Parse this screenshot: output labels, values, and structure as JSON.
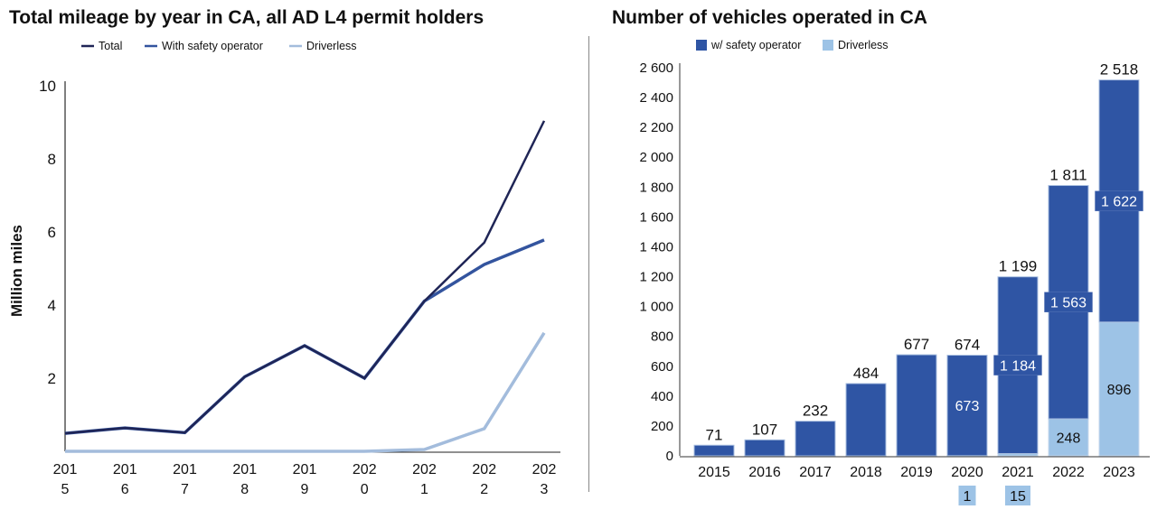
{
  "chart_data": [
    {
      "type": "line",
      "title": "Total mileage by year in CA, all AD L4 permit holders",
      "xlabel": "",
      "ylabel": "Million miles",
      "x": [
        "2015",
        "2016",
        "2017",
        "2018",
        "2019",
        "2020",
        "2021",
        "2022",
        "2023"
      ],
      "x_tick_labels": [
        [
          "201",
          "5"
        ],
        [
          "201",
          "6"
        ],
        [
          "201",
          "7"
        ],
        [
          "201",
          "8"
        ],
        [
          "201",
          "9"
        ],
        [
          "202",
          "0"
        ],
        [
          "202",
          "1"
        ],
        [
          "202",
          "2"
        ],
        [
          "202",
          "3"
        ]
      ],
      "y_ticks": [
        2,
        4,
        6,
        8,
        10
      ],
      "y_tick_labels": [
        [
          "2"
        ],
        [
          "4"
        ],
        [
          "6"
        ],
        [
          "8"
        ],
        [
          "1",
          "0"
        ]
      ],
      "ylim": [
        0,
        10
      ],
      "grid": false,
      "legend_position": "top-left",
      "series": [
        {
          "name": "Total",
          "color": "#1f2556",
          "values": [
            0.49,
            0.64,
            0.51,
            2.04,
            2.89,
            2.0,
            4.11,
            5.71,
            9.04
          ]
        },
        {
          "name": "With safety operator",
          "legend_lines": [
            "With safety",
            "operator"
          ],
          "color": "#33549e",
          "values": [
            0.49,
            0.64,
            0.51,
            2.04,
            2.89,
            2.0,
            4.11,
            5.11,
            5.78
          ]
        },
        {
          "name": "Driverless",
          "color": "#a3bcdc",
          "values": [
            0.0,
            0.0,
            0.0,
            0.0,
            0.0,
            0.0,
            0.05,
            0.62,
            3.24
          ]
        }
      ]
    },
    {
      "type": "bar",
      "stacked": true,
      "title": "Number of vehicles operated in CA",
      "xlabel": "",
      "ylabel": "",
      "categories": [
        "2015",
        "2016",
        "2017",
        "2018",
        "2019",
        "2020",
        "2021",
        "2022",
        "2023"
      ],
      "ylim": [
        0,
        2600
      ],
      "y_ticks": [
        0,
        200,
        400,
        600,
        800,
        1000,
        1200,
        1400,
        1600,
        1800,
        2000,
        2200,
        2400,
        2600
      ],
      "y_tick_labels": [
        [
          "0"
        ],
        [
          "20",
          "0"
        ],
        [
          "40",
          "0"
        ],
        [
          "60",
          "0"
        ],
        [
          "80",
          "0"
        ],
        [
          "1 00",
          "0"
        ],
        [
          "1 20",
          "0"
        ],
        [
          "1 40",
          "0"
        ],
        [
          "1 60",
          "0"
        ],
        [
          "1 80",
          "0"
        ],
        [
          "2 00",
          "0"
        ],
        [
          "2 20",
          "0"
        ],
        [
          "2 40",
          "0"
        ],
        [
          "2 60",
          "0"
        ]
      ],
      "grid": false,
      "legend_position": "top-left",
      "series": [
        {
          "name": "w/ safety operator",
          "legend_lines": [
            "w/ safety",
            "operator"
          ],
          "color": "#2f55a4",
          "values": [
            71,
            107,
            232,
            484,
            677,
            673,
            1184,
            1563,
            1622
          ],
          "labels": [
            null,
            null,
            null,
            null,
            null,
            "673",
            "1 184",
            "1 563",
            "1 622"
          ]
        },
        {
          "name": "Driverless",
          "legend_lines": [
            "Driverless"
          ],
          "color": "#9dc3e6",
          "values": [
            0,
            0,
            0,
            0,
            0,
            1,
            15,
            248,
            896
          ],
          "labels": [
            null,
            null,
            null,
            null,
            null,
            "1",
            "15",
            "248",
            "896"
          ]
        }
      ],
      "totals": [
        71,
        107,
        232,
        484,
        677,
        674,
        1199,
        1811,
        2518
      ],
      "total_labels": [
        [
          "71"
        ],
        [
          "107"
        ],
        [
          "232"
        ],
        [
          "484"
        ],
        [
          "677"
        ],
        [
          "674"
        ],
        [
          "1 199"
        ],
        [
          "1 81",
          "1"
        ],
        [
          "2 518"
        ]
      ]
    }
  ]
}
